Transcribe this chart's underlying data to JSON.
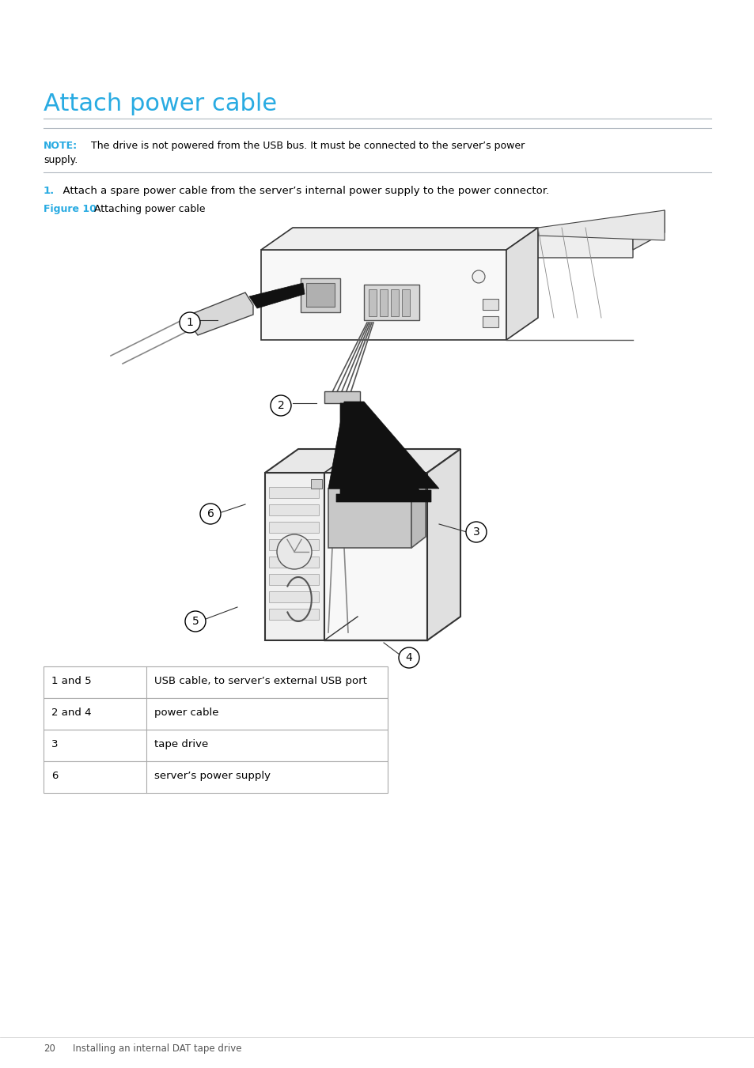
{
  "title": "Attach power cable",
  "note_label": "NOTE:",
  "note_text": "   The drive is not powered from the USB bus. It must be connected to the server’s power",
  "note_text2": "supply.",
  "step1_label": "1.",
  "step1_text": "  Attach a spare power cable from the server’s internal power supply to the power connector.",
  "figure_label": "Figure 10",
  "figure_caption": "  Attaching power cable",
  "table_rows": [
    [
      "1 and 5",
      "USB cable, to server’s external USB port"
    ],
    [
      "2 and 4",
      "power cable"
    ],
    [
      "3",
      "tape drive"
    ],
    [
      "6",
      "server’s power supply"
    ]
  ],
  "footer_page": "20",
  "footer_text": "    Installing an internal DAT tape drive",
  "title_color": "#29abe2",
  "note_label_color": "#29abe2",
  "step_label_color": "#29abe2",
  "body_color": "#000000",
  "bg_color": "#ffffff",
  "rule_color": "#b0b8c0",
  "figure_label_color": "#29abe2",
  "footer_color": "#555555"
}
